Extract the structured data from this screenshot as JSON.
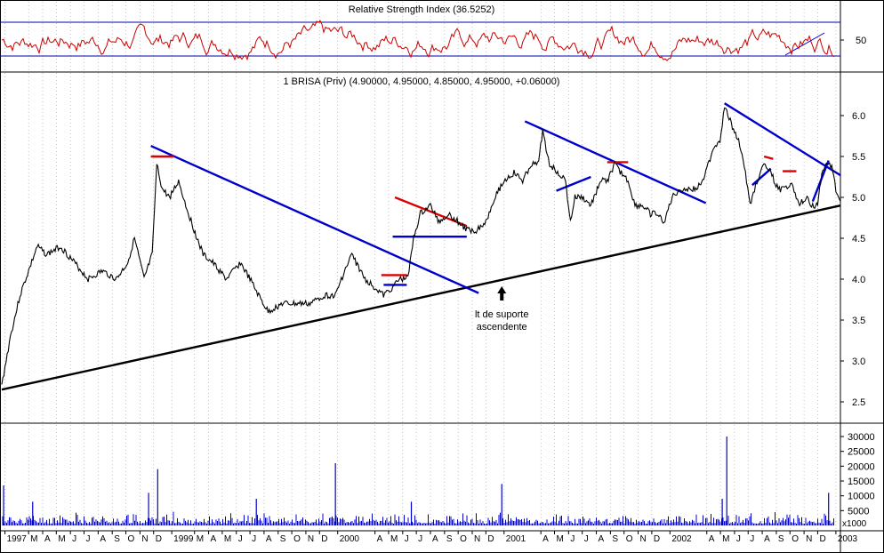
{
  "chart_data": [
    {
      "type": "line",
      "title": "Relative Strength Index (36.5252)",
      "y_ticks": [
        50
      ],
      "reference_levels": [
        70,
        30
      ],
      "ylim": [
        15,
        85
      ],
      "colors": {
        "line": "#cc0000",
        "reference": "#0000aa"
      }
    },
    {
      "type": "line",
      "title": "1 BRISA (Priv) (4.90000, 4.95000, 4.85000, 4.95000, +0.06000)",
      "ylim": [
        2.2,
        6.4
      ],
      "y_ticks": [
        "6.0",
        "5.5",
        "5.0",
        "4.5",
        "4.0",
        "3.5",
        "3.0",
        "2.5"
      ],
      "x_range": [
        "1998-01-01",
        "2003-01-20"
      ],
      "x_labels": [
        {
          "label": "1997",
          "date": "1998-01-08"
        },
        {
          "label": "M",
          "date": "1998-03-01"
        },
        {
          "label": "A",
          "date": "1998-04-01"
        },
        {
          "label": "M",
          "date": "1998-05-01"
        },
        {
          "label": "J",
          "date": "1998-06-01"
        },
        {
          "label": "J",
          "date": "1998-07-01"
        },
        {
          "label": "A",
          "date": "1998-08-01"
        },
        {
          "label": "S",
          "date": "1998-09-01"
        },
        {
          "label": "O",
          "date": "1998-10-01"
        },
        {
          "label": "N",
          "date": "1998-11-01"
        },
        {
          "label": "D",
          "date": "1998-12-01"
        },
        {
          "label": "1999",
          "date": "1999-01-10"
        },
        {
          "label": "M",
          "date": "1999-03-01"
        },
        {
          "label": "A",
          "date": "1999-04-01"
        },
        {
          "label": "M",
          "date": "1999-05-01"
        },
        {
          "label": "J",
          "date": "1999-06-01"
        },
        {
          "label": "J",
          "date": "1999-07-01"
        },
        {
          "label": "A",
          "date": "1999-08-01"
        },
        {
          "label": "S",
          "date": "1999-09-01"
        },
        {
          "label": "O",
          "date": "1999-10-01"
        },
        {
          "label": "N",
          "date": "1999-11-01"
        },
        {
          "label": "D",
          "date": "1999-12-01"
        },
        {
          "label": "2000",
          "date": "2000-01-10"
        },
        {
          "label": "A",
          "date": "2000-04-01"
        },
        {
          "label": "M",
          "date": "2000-05-01"
        },
        {
          "label": "J",
          "date": "2000-06-01"
        },
        {
          "label": "J",
          "date": "2000-07-01"
        },
        {
          "label": "A",
          "date": "2000-08-01"
        },
        {
          "label": "S",
          "date": "2000-09-01"
        },
        {
          "label": "O",
          "date": "2000-10-01"
        },
        {
          "label": "N",
          "date": "2000-11-01"
        },
        {
          "label": "D",
          "date": "2000-12-01"
        },
        {
          "label": "2001",
          "date": "2001-01-10"
        },
        {
          "label": "A",
          "date": "2001-04-01"
        },
        {
          "label": "M",
          "date": "2001-05-01"
        },
        {
          "label": "J",
          "date": "2001-06-01"
        },
        {
          "label": "J",
          "date": "2001-07-01"
        },
        {
          "label": "A",
          "date": "2001-08-01"
        },
        {
          "label": "S",
          "date": "2001-09-01"
        },
        {
          "label": "O",
          "date": "2001-10-01"
        },
        {
          "label": "N",
          "date": "2001-11-01"
        },
        {
          "label": "D",
          "date": "2001-12-01"
        },
        {
          "label": "2002",
          "date": "2002-01-10"
        },
        {
          "label": "A",
          "date": "2002-04-01"
        },
        {
          "label": "M",
          "date": "2002-05-01"
        },
        {
          "label": "J",
          "date": "2002-06-01"
        },
        {
          "label": "J",
          "date": "2002-07-01"
        },
        {
          "label": "A",
          "date": "2002-08-01"
        },
        {
          "label": "S",
          "date": "2002-09-01"
        },
        {
          "label": "O",
          "date": "2002-10-01"
        },
        {
          "label": "N",
          "date": "2002-11-01"
        },
        {
          "label": "D",
          "date": "2002-12-01"
        },
        {
          "label": "2003",
          "date": "2003-01-10"
        }
      ],
      "series": [
        {
          "color": "#000000",
          "x": [
            "1998-01-01",
            "1998-01-20",
            "1998-02-10",
            "1998-03-01",
            "1998-03-20",
            "1998-04-10",
            "1998-05-10",
            "1998-06-10",
            "1998-07-10",
            "1998-08-10",
            "1998-09-10",
            "1998-10-05",
            "1998-10-20",
            "1998-11-10",
            "1998-11-28",
            "1998-12-08",
            "1998-12-20",
            "1999-01-05",
            "1999-01-25",
            "1999-02-10",
            "1999-02-28",
            "1999-03-20",
            "1999-04-10",
            "1999-05-10",
            "1999-06-10",
            "1999-07-01",
            "1999-07-20",
            "1999-08-10",
            "1999-09-10",
            "1999-10-10",
            "1999-11-10",
            "1999-12-10",
            "2000-01-05",
            "2000-01-18",
            "2000-02-10",
            "2000-03-10",
            "2000-04-01",
            "2000-04-20",
            "2000-05-10",
            "2000-05-25",
            "2000-06-05",
            "2000-06-15",
            "2000-06-25",
            "2000-07-10",
            "2000-08-01",
            "2000-08-20",
            "2000-09-10",
            "2000-10-01",
            "2000-10-20",
            "2000-11-10",
            "2000-12-01",
            "2000-12-20",
            "2001-01-10",
            "2001-02-01",
            "2001-02-20",
            "2001-03-10",
            "2001-03-25",
            "2001-04-05",
            "2001-04-20",
            "2001-05-10",
            "2001-05-25",
            "2001-06-05",
            "2001-06-15",
            "2001-07-01",
            "2001-07-20",
            "2001-08-10",
            "2001-08-25",
            "2001-09-10",
            "2001-09-25",
            "2001-10-10",
            "2001-10-25",
            "2001-11-10",
            "2001-11-28",
            "2001-12-10",
            "2001-12-28",
            "2002-01-15",
            "2002-02-01",
            "2002-02-20",
            "2002-03-10",
            "2002-03-30",
            "2002-04-15",
            "2002-04-30",
            "2002-05-10",
            "2002-05-25",
            "2002-06-10",
            "2002-06-25",
            "2002-07-05",
            "2002-07-20",
            "2002-08-05",
            "2002-08-20",
            "2002-09-05",
            "2002-09-20",
            "2002-10-05",
            "2002-10-20",
            "2002-11-05",
            "2002-11-20",
            "2002-12-01",
            "2002-12-10",
            "2002-12-20",
            "2003-01-01",
            "2003-01-10",
            "2003-01-20"
          ],
          "y": [
            2.7,
            3.3,
            3.8,
            4.1,
            4.4,
            4.3,
            4.4,
            4.2,
            4.0,
            4.1,
            4.0,
            4.2,
            4.5,
            4.0,
            4.3,
            5.4,
            5.1,
            5.0,
            5.2,
            4.9,
            4.6,
            4.3,
            4.2,
            4.0,
            4.2,
            4.0,
            3.8,
            3.6,
            3.7,
            3.7,
            3.7,
            3.8,
            3.8,
            4.0,
            4.3,
            4.0,
            3.9,
            3.8,
            3.9,
            4.0,
            4.0,
            4.1,
            4.5,
            4.8,
            4.9,
            4.7,
            4.8,
            4.7,
            4.6,
            4.6,
            4.7,
            5.0,
            5.2,
            5.3,
            5.2,
            5.4,
            5.4,
            5.8,
            5.4,
            5.3,
            5.2,
            4.7,
            5.0,
            5.0,
            4.9,
            5.2,
            5.2,
            5.4,
            5.3,
            5.2,
            4.9,
            4.9,
            4.8,
            4.8,
            4.7,
            5.0,
            5.1,
            5.1,
            5.1,
            5.3,
            5.6,
            5.7,
            6.1,
            5.9,
            5.7,
            5.3,
            4.9,
            5.2,
            5.4,
            5.3,
            5.1,
            5.1,
            5.2,
            4.9,
            5.0,
            4.9,
            4.9,
            5.3,
            5.4,
            5.4,
            5.1,
            4.95
          ]
        }
      ],
      "annotations": [
        {
          "text": "lt de suporte",
          "x": "2001-01-05",
          "y": 3.55
        },
        {
          "text": "ascendente",
          "x": "2001-01-05",
          "y": 3.4
        }
      ],
      "trendlines": [
        {
          "color": "#000000",
          "from": {
            "x": "1998-01-01",
            "y": 2.65
          },
          "to": {
            "x": "2003-01-20",
            "y": 4.9
          }
        },
        {
          "color": "#0000cc",
          "from": {
            "x": "1998-11-25",
            "y": 5.63
          },
          "to": {
            "x": "2000-11-15",
            "y": 3.83
          }
        },
        {
          "color": "#0000cc",
          "from": {
            "x": "2001-02-25",
            "y": 5.93
          },
          "to": {
            "x": "2002-03-30",
            "y": 4.93
          }
        },
        {
          "color": "#0000cc",
          "from": {
            "x": "2002-05-10",
            "y": 6.15
          },
          "to": {
            "x": "2003-01-20",
            "y": 5.27
          }
        },
        {
          "color": "#0000cc",
          "from": {
            "x": "2000-05-10",
            "y": 4.52
          },
          "to": {
            "x": "2000-10-20",
            "y": 4.52
          }
        },
        {
          "color": "#0000cc",
          "from": {
            "x": "2000-04-20",
            "y": 3.93
          },
          "to": {
            "x": "2000-06-10",
            "y": 3.93
          }
        },
        {
          "color": "#0000cc",
          "from": {
            "x": "2001-05-05",
            "y": 5.08
          },
          "to": {
            "x": "2001-07-20",
            "y": 5.25
          }
        },
        {
          "color": "#0000cc",
          "from": {
            "x": "2002-07-10",
            "y": 5.15
          },
          "to": {
            "x": "2002-08-20",
            "y": 5.35
          }
        },
        {
          "color": "#0000cc",
          "from": {
            "x": "2002-11-20",
            "y": 4.95
          },
          "to": {
            "x": "2002-12-25",
            "y": 5.45
          }
        },
        {
          "color": "#dd0000",
          "from": {
            "x": "1998-11-25",
            "y": 5.5
          },
          "to": {
            "x": "1999-01-15",
            "y": 5.5
          }
        },
        {
          "color": "#dd0000",
          "from": {
            "x": "2000-04-15",
            "y": 4.05
          },
          "to": {
            "x": "2000-06-10",
            "y": 4.05
          }
        },
        {
          "color": "#dd0000",
          "from": {
            "x": "2000-05-15",
            "y": 5.0
          },
          "to": {
            "x": "2000-10-20",
            "y": 4.65
          }
        },
        {
          "color": "#dd0000",
          "from": {
            "x": "2001-08-25",
            "y": 5.43
          },
          "to": {
            "x": "2001-10-10",
            "y": 5.43
          }
        },
        {
          "color": "#dd0000",
          "from": {
            "x": "2002-08-05",
            "y": 5.5
          },
          "to": {
            "x": "2002-08-25",
            "y": 5.47
          }
        },
        {
          "color": "#dd0000",
          "from": {
            "x": "2002-09-15",
            "y": 5.32
          },
          "to": {
            "x": "2002-10-15",
            "y": 5.32
          }
        }
      ]
    },
    {
      "type": "bar",
      "unit_label": "x1000",
      "y_ticks": [
        "30000",
        "25000",
        "20000",
        "15000",
        "10000",
        "5000"
      ],
      "ylim": [
        0,
        33000
      ],
      "colors": {
        "bars": "#0000cc"
      },
      "series": [
        {
          "x": [
            "1998-01-05",
            "1998-03-10",
            "1998-11-20",
            "1998-12-10",
            "1999-07-15",
            "2000-01-05",
            "2000-06-20",
            "2001-01-05",
            "2002-05-05",
            "2002-05-15",
            "2002-12-25"
          ],
          "values": [
            13500,
            8000,
            11000,
            19000,
            9000,
            21000,
            8000,
            14000,
            9000,
            30000,
            11000
          ]
        }
      ]
    }
  ]
}
